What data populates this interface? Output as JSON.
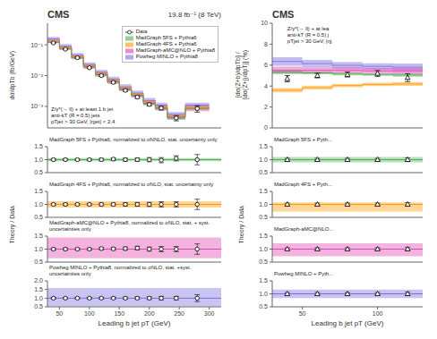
{
  "chart_data": [
    {
      "type": "step",
      "title": "CMS",
      "subtitle": "19.8 fb⁻¹ (8 TeV)",
      "ylabel": "dσ/dpTb (fb/GeV)",
      "annotation": "Z/γ*(→ ll) + at least 1 b jet\nanti-kT (R = 0.5) jets\npTjet > 30 GeV, |ηjet| < 2.4",
      "log": "y",
      "legend": "upper right",
      "tick_labels": "y",
      "xlim": [
        30,
        320
      ],
      "xticks": [
        50,
        100,
        150,
        200,
        250,
        300
      ],
      "ylim": [
        0.0002,
        0.5
      ],
      "yticks": [
        {
          "value": 0.001,
          "label": "10⁻³"
        },
        {
          "value": 0.01,
          "label": "10⁻²"
        },
        {
          "value": 0.1,
          "label": "10⁻¹"
        }
      ],
      "bins": [
        30,
        50,
        70,
        90,
        110,
        130,
        150,
        170,
        190,
        210,
        230,
        260,
        300
      ],
      "x": [
        40,
        60,
        80,
        100,
        120,
        140,
        160,
        180,
        200,
        220,
        245,
        280
      ],
      "series": [
        {
          "name": "Data",
          "type": "errorbar",
          "marker": "circle",
          "color": "black",
          "values": [
            0.115,
            0.072,
            0.038,
            0.018,
            0.01,
            0.006,
            0.0033,
            0.002,
            0.00115,
            0.00088,
            0.00042,
            0.00085
          ],
          "errors": [
            0.005,
            0.003,
            0.002,
            0.001,
            0.0007,
            0.0005,
            0.00025,
            0.00018,
            0.00012,
            0.00012,
            8e-05,
            0.0002
          ]
        },
        {
          "name": "MadGraph 5FS + Pythia6",
          "type": "step",
          "color": "#4caf50",
          "values": [
            0.12,
            0.075,
            0.038,
            0.019,
            0.0105,
            0.0062,
            0.0035,
            0.0022,
            0.0012,
            0.00085,
            0.00042,
            0.00085
          ],
          "errors": [
            0.006,
            0.004,
            0.002,
            0.001,
            0.0006,
            0.0004,
            0.0002,
            0.00015,
            8e-05,
            7e-05,
            4e-05,
            8e-05
          ]
        },
        {
          "name": "MadGraph 4FS + Pythia6",
          "type": "step",
          "color": "#ff9800",
          "values": [
            0.135,
            0.082,
            0.042,
            0.021,
            0.012,
            0.007,
            0.004,
            0.0025,
            0.0014,
            0.00095,
            0.00048,
            0.0009
          ],
          "errors": [
            0.008,
            0.005,
            0.002,
            0.0012,
            0.0007,
            0.0004,
            0.00025,
            0.00015,
            0.0001,
            8e-05,
            4e-05,
            9e-05
          ]
        },
        {
          "name": "MadGraph-aMC@NLO + Pythia8",
          "type": "step",
          "color": "#e040b0",
          "values": [
            0.13,
            0.078,
            0.04,
            0.0195,
            0.011,
            0.0065,
            0.0037,
            0.0023,
            0.0013,
            0.0009,
            0.00045,
            0.00088
          ],
          "errors": [
            0.018,
            0.011,
            0.006,
            0.003,
            0.0018,
            0.0011,
            0.0006,
            0.00038,
            0.00022,
            0.00016,
            8e-05,
            0.00018
          ]
        },
        {
          "name": "Powheg MINLO + Pythia8",
          "type": "step",
          "color": "#7b6bde",
          "values": [
            0.155,
            0.09,
            0.046,
            0.023,
            0.013,
            0.0077,
            0.0043,
            0.0027,
            0.00155,
            0.0011,
            0.00055,
            0.0011
          ],
          "errors": [
            0.025,
            0.015,
            0.008,
            0.004,
            0.0025,
            0.0015,
            0.0009,
            0.00055,
            0.00032,
            0.00022,
            0.00011,
            0.00022
          ]
        }
      ]
    },
    {
      "type": "ratio",
      "annotation": "MadGraph 5FS + Pythia6, normalized to σNNLO, stat. uncertainty only",
      "ylabel": "Theory / Data",
      "color": "#4caf50",
      "band": [
        0.94,
        1.06
      ],
      "reference_line": 1,
      "tick_labels": "y",
      "xlim": [
        30,
        320
      ],
      "xticks": [
        50,
        100,
        150,
        200,
        250,
        300
      ],
      "ylim": [
        0.5,
        1.5
      ],
      "yticks": [
        0.5,
        {
          "value": 1,
          "label": "1.0"
        },
        1.5
      ],
      "x": [
        40,
        60,
        80,
        100,
        120,
        140,
        160,
        180,
        200,
        220,
        245,
        280
      ],
      "series": [
        {
          "type": "errorbar",
          "marker": "circle",
          "color": "black",
          "values": [
            1.0,
            1.0,
            1.0,
            1.0,
            1.0,
            1.02,
            1.0,
            1.0,
            1.0,
            0.98,
            1.05,
            1.0
          ],
          "errors": [
            0.04,
            0.04,
            0.04,
            0.04,
            0.05,
            0.05,
            0.06,
            0.07,
            0.08,
            0.1,
            0.1,
            0.2
          ]
        }
      ]
    },
    {
      "type": "ratio",
      "annotation": "MadGraph 4FS + Pythia6, normalized to σNLO, stat. uncertainty only",
      "color": "#ff9800",
      "band": [
        0.88,
        1.12
      ],
      "reference_line": 1,
      "tick_labels": "y",
      "xlim": [
        30,
        320
      ],
      "xticks": [
        50,
        100,
        150,
        200,
        250,
        300
      ],
      "ylim": [
        0.5,
        1.5
      ],
      "yticks": [
        0.5,
        {
          "value": 1,
          "label": "1.0"
        },
        1.5
      ],
      "x": [
        40,
        60,
        80,
        100,
        120,
        140,
        160,
        180,
        200,
        220,
        245,
        280
      ],
      "series": [
        {
          "type": "errorbar",
          "marker": "circle",
          "color": "black",
          "values": [
            1.0,
            1.0,
            1.0,
            1.0,
            1.0,
            1.0,
            1.0,
            1.0,
            1.0,
            1.0,
            1.0,
            1.0
          ],
          "errors": [
            0.04,
            0.04,
            0.04,
            0.04,
            0.05,
            0.05,
            0.06,
            0.07,
            0.08,
            0.1,
            0.1,
            0.2
          ]
        }
      ]
    },
    {
      "type": "ratio",
      "annotation": "MadGraph-aMC@NLO + Pythia8, normalized to σNLO, stat. + syst. uncertainties only",
      "color": "#e040b0",
      "band": [
        0.65,
        1.45
      ],
      "reference_line": 1,
      "tick_labels": "y",
      "xlim": [
        30,
        320
      ],
      "xticks": [
        50,
        100,
        150,
        200,
        250,
        300
      ],
      "ylim": [
        0.5,
        1.5
      ],
      "yticks": [
        0.5,
        {
          "value": 1,
          "label": "1.0"
        },
        1.5
      ],
      "x": [
        40,
        60,
        80,
        100,
        120,
        140,
        160,
        180,
        200,
        220,
        245,
        280
      ],
      "series": [
        {
          "type": "errorbar",
          "marker": "circle",
          "color": "black",
          "values": [
            1.0,
            1.0,
            1.0,
            1.0,
            1.02,
            1.01,
            1.02,
            1.04,
            1.0,
            1.0,
            1.0,
            1.0
          ],
          "errors": [
            0.04,
            0.04,
            0.04,
            0.04,
            0.05,
            0.05,
            0.06,
            0.07,
            0.08,
            0.1,
            0.1,
            0.2
          ]
        }
      ]
    },
    {
      "type": "ratio",
      "annotation": "Powheg MINLO + Pythia8, normalized to σNLO, stat. +syst. uncertainties only",
      "xlabel": "Leading b jet pT (GeV)",
      "color": "#7b6bde",
      "band": [
        0.52,
        1.58
      ],
      "reference_line": 1,
      "tick_labels": true,
      "xlim": [
        30,
        320
      ],
      "xticks": [
        50,
        100,
        150,
        200,
        250,
        300
      ],
      "ylim": [
        0.5,
        2.0
      ],
      "yticks": [
        0.5,
        {
          "value": 1,
          "label": "1.0"
        },
        1.5,
        {
          "value": 2,
          "label": "2.0"
        }
      ],
      "x": [
        40,
        60,
        80,
        100,
        120,
        140,
        160,
        180,
        200,
        220,
        245,
        280
      ],
      "series": [
        {
          "type": "errorbar",
          "marker": "circle",
          "color": "black",
          "values": [
            1.0,
            1.0,
            1.0,
            1.0,
            1.0,
            1.0,
            1.0,
            1.0,
            1.0,
            1.0,
            1.0,
            1.0
          ],
          "errors": [
            0.04,
            0.04,
            0.04,
            0.04,
            0.05,
            0.05,
            0.06,
            0.07,
            0.08,
            0.1,
            0.1,
            0.2
          ]
        }
      ]
    },
    {
      "type": "step",
      "title": "CMS",
      "ylabel": "[dσ(Z+b)/dpTb] /\n[dσ(Z+j)/dpTj] (%)",
      "annotation": "Z/γ*(→ ll) + at lea\nanti-kT (R = 0.5) j\npTjet > 30 GeV, |ηj",
      "tick_labels": "y",
      "xlim": [
        30,
        130
      ],
      "xticks": [
        50,
        100
      ],
      "ylim": [
        0,
        10
      ],
      "yticks": [
        0,
        2,
        4,
        6,
        8,
        10
      ],
      "bins": [
        30,
        50,
        70,
        90,
        110,
        130
      ],
      "x": [
        40,
        60,
        80,
        100,
        120
      ],
      "series": [
        {
          "type": "errorbar",
          "marker": "triangle",
          "color": "black",
          "values": [
            4.7,
            5.0,
            5.1,
            5.2,
            4.8
          ],
          "errors": [
            0.3,
            0.22,
            0.24,
            0.28,
            0.38
          ]
        },
        {
          "type": "step",
          "color": "#4caf50",
          "values": [
            5.35,
            5.25,
            5.15,
            5.1,
            5.05
          ],
          "errors": [
            0.15,
            0.12,
            0.12,
            0.12,
            0.15
          ]
        },
        {
          "type": "step",
          "color": "#ff9800",
          "values": [
            3.6,
            3.85,
            4.05,
            4.15,
            4.2
          ],
          "errors": [
            0.2,
            0.18,
            0.16,
            0.16,
            0.18
          ]
        },
        {
          "type": "step",
          "color": "#e040b0",
          "values": [
            5.5,
            5.5,
            5.5,
            5.45,
            5.4
          ],
          "errors": [
            0.35,
            0.3,
            0.28,
            0.28,
            0.32
          ]
        },
        {
          "type": "step",
          "color": "#7b6bde",
          "values": [
            6.35,
            6.15,
            5.98,
            5.88,
            5.8
          ],
          "errors": [
            0.4,
            0.35,
            0.32,
            0.3,
            0.35
          ]
        }
      ]
    },
    {
      "type": "ratio",
      "annotation": "MadGraph 5FS + Pyth...",
      "ylabel": "Theory / Data",
      "color": "#4caf50",
      "band": [
        0.9,
        1.1
      ],
      "reference_line": 1,
      "tick_labels": "y",
      "xlim": [
        30,
        130
      ],
      "xticks": [
        50,
        100
      ],
      "ylim": [
        0.5,
        1.5
      ],
      "yticks": [
        0.5,
        {
          "value": 1,
          "label": "1.0"
        },
        1.5
      ],
      "x": [
        40,
        60,
        80,
        100,
        120
      ],
      "series": [
        {
          "type": "errorbar",
          "marker": "triangle",
          "color": "black",
          "values": [
            1.0,
            1.0,
            1.0,
            1.0,
            1.0
          ],
          "errors": [
            0.05,
            0.05,
            0.05,
            0.05,
            0.07
          ]
        }
      ]
    },
    {
      "type": "ratio",
      "annotation": "MadGraph 4FS + Pyth...",
      "color": "#ff9800",
      "band": [
        0.72,
        1.08
      ],
      "reference_line": 1,
      "tick_labels": "y",
      "xlim": [
        30,
        130
      ],
      "xticks": [
        50,
        100
      ],
      "ylim": [
        0.5,
        1.5
      ],
      "yticks": [
        0.5,
        {
          "value": 1,
          "label": "1.0"
        },
        1.5
      ],
      "x": [
        40,
        60,
        80,
        100,
        120
      ],
      "series": [
        {
          "type": "errorbar",
          "marker": "triangle",
          "color": "black",
          "values": [
            1.0,
            1.0,
            1.0,
            1.0,
            1.0
          ],
          "errors": [
            0.05,
            0.05,
            0.05,
            0.05,
            0.07
          ]
        }
      ]
    },
    {
      "type": "ratio",
      "annotation": "MadGraph-aMC@NLO...",
      "color": "#e040b0",
      "band": [
        0.72,
        1.22
      ],
      "reference_line": 1,
      "tick_labels": "y",
      "xlim": [
        30,
        130
      ],
      "xticks": [
        50,
        100
      ],
      "ylim": [
        0.5,
        1.5
      ],
      "yticks": [
        0.5,
        {
          "value": 1,
          "label": "1.0"
        },
        1.5
      ],
      "x": [
        40,
        60,
        80,
        100,
        120
      ],
      "series": [
        {
          "type": "errorbar",
          "marker": "triangle",
          "color": "black",
          "values": [
            1.0,
            1.0,
            1.0,
            1.0,
            1.0
          ],
          "errors": [
            0.05,
            0.05,
            0.05,
            0.05,
            0.07
          ]
        }
      ]
    },
    {
      "type": "ratio",
      "annotation": "Powheg MINLO + Pyth...",
      "xlabel": "Leading b jet pT (GeV)",
      "color": "#7b6bde",
      "band": [
        0.84,
        1.16
      ],
      "reference_line": 1,
      "tick_labels": true,
      "xlim": [
        30,
        130
      ],
      "xticks": [
        50,
        100
      ],
      "ylim": [
        0.5,
        1.5
      ],
      "yticks": [
        0.5,
        {
          "value": 1,
          "label": "1.0"
        },
        1.5
      ],
      "x": [
        40,
        60,
        80,
        100,
        120
      ],
      "series": [
        {
          "type": "errorbar",
          "marker": "triangle",
          "color": "black",
          "values": [
            1.0,
            1.0,
            1.0,
            1.0,
            1.0
          ],
          "errors": [
            0.05,
            0.05,
            0.05,
            0.05,
            0.07
          ]
        }
      ]
    }
  ]
}
